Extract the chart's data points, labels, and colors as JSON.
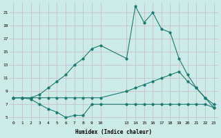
{
  "xlabel": "Humidex (Indice chaleur)",
  "bg_color": "#cceae6",
  "grid_color": "#c4b8c8",
  "line_color": "#1a7a6e",
  "line_peak_x": [
    0,
    1,
    2,
    3,
    4,
    5,
    6,
    7,
    8,
    9,
    10,
    13,
    14,
    15,
    16,
    17,
    18,
    19,
    20,
    21,
    22,
    23
  ],
  "line_peak_y": [
    8.0,
    8.0,
    8.0,
    8.5,
    9.5,
    10.5,
    11.5,
    13.0,
    14.0,
    15.5,
    16.0,
    14.0,
    22.0,
    19.5,
    21.0,
    18.5,
    18.0,
    14.0,
    11.5,
    9.5,
    8.0,
    6.5
  ],
  "line_diag_x": [
    0,
    1,
    2,
    3,
    4,
    5,
    6,
    7,
    8,
    9,
    10,
    13,
    14,
    15,
    16,
    17,
    18,
    19,
    20,
    21,
    22,
    23
  ],
  "line_diag_y": [
    8.0,
    8.0,
    8.0,
    8.0,
    8.0,
    8.0,
    8.0,
    8.0,
    8.0,
    8.0,
    8.0,
    9.0,
    9.5,
    10.0,
    10.5,
    11.0,
    11.5,
    12.0,
    10.5,
    9.5,
    8.0,
    7.0
  ],
  "line_low_x": [
    0,
    1,
    2,
    3,
    4,
    5,
    6,
    7,
    8,
    9,
    10,
    13,
    14,
    15,
    16,
    17,
    18,
    19,
    20,
    21,
    22,
    23
  ],
  "line_low_y": [
    8.0,
    8.0,
    7.8,
    7.0,
    6.3,
    5.8,
    5.0,
    5.3,
    5.3,
    7.0,
    7.0,
    7.0,
    7.0,
    7.0,
    7.0,
    7.0,
    7.0,
    7.0,
    7.0,
    7.0,
    7.0,
    6.5
  ],
  "yticks": [
    5,
    7,
    9,
    11,
    13,
    15,
    17,
    19,
    21
  ],
  "xticks": [
    0,
    1,
    2,
    3,
    4,
    5,
    6,
    7,
    8,
    9,
    10,
    13,
    14,
    15,
    16,
    17,
    18,
    19,
    20,
    21,
    22,
    23
  ],
  "ylim": [
    4.5,
    22.5
  ],
  "xlim": [
    -0.5,
    23.5
  ]
}
